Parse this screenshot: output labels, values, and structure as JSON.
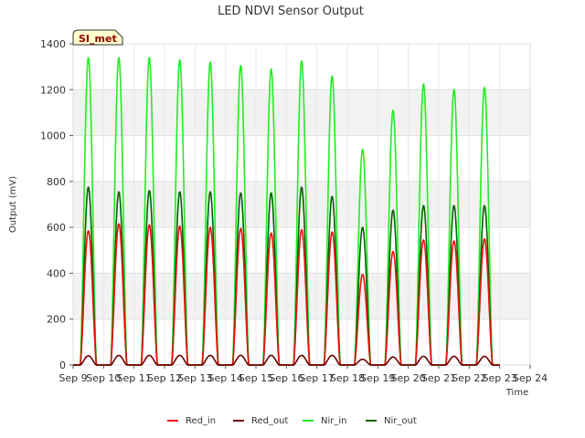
{
  "chart_data": {
    "type": "line",
    "title": "LED NDVI Sensor Output",
    "xlabel": "Time",
    "ylabel": "Output (mV)",
    "badge": "SI_met",
    "xlim": [
      9,
      24
    ],
    "ylim": [
      0,
      1400
    ],
    "yticks": [
      0,
      200,
      400,
      600,
      800,
      1000,
      1200,
      1400
    ],
    "xticks": [
      {
        "value": 9,
        "label": "Sep 9"
      },
      {
        "value": 10,
        "label": "Sep 10"
      },
      {
        "value": 11,
        "label": "Sep 11"
      },
      {
        "value": 12,
        "label": "Sep 12"
      },
      {
        "value": 13,
        "label": "Sep 13"
      },
      {
        "value": 14,
        "label": "Sep 14"
      },
      {
        "value": 15,
        "label": "Sep 15"
      },
      {
        "value": 16,
        "label": "Sep 16"
      },
      {
        "value": 17,
        "label": "Sep 17"
      },
      {
        "value": 18,
        "label": "Sep 18"
      },
      {
        "value": 19,
        "label": "Sep 19"
      },
      {
        "value": 20,
        "label": "Sep 20"
      },
      {
        "value": 21,
        "label": "Sep 21"
      },
      {
        "value": 22,
        "label": "Sep 22"
      },
      {
        "value": 23,
        "label": "Sep 23"
      },
      {
        "value": 24,
        "label": "Sep 24"
      }
    ],
    "day_centers": [
      9.5,
      10.5,
      11.5,
      12.5,
      13.5,
      14.5,
      15.5,
      16.5,
      17.5,
      18.5,
      19.5,
      20.5,
      21.5,
      22.5
    ],
    "series": [
      {
        "name": "Nir_in",
        "color": "#22ee22",
        "peaks": [
          1340,
          1340,
          1340,
          1330,
          1320,
          1305,
          1290,
          1325,
          1260,
          940,
          1110,
          1225,
          1200,
          1210
        ]
      },
      {
        "name": "Nir_out",
        "color": "#006400",
        "peaks": [
          775,
          755,
          760,
          755,
          755,
          750,
          750,
          775,
          735,
          600,
          675,
          695,
          695,
          695
        ]
      },
      {
        "name": "Red_in",
        "color": "#ee1111",
        "peaks": [
          585,
          615,
          610,
          605,
          600,
          595,
          575,
          590,
          580,
          395,
          495,
          545,
          540,
          550
        ]
      },
      {
        "name": "Red_out",
        "color": "#6b0000",
        "peaks": [
          40,
          42,
          42,
          42,
          42,
          42,
          42,
          42,
          42,
          25,
          35,
          38,
          38,
          38
        ]
      }
    ],
    "legend": [
      "Red_in",
      "Red_out",
      "Nir_in",
      "Nir_out"
    ],
    "legend_placement": "bottom-center",
    "grid": true
  }
}
